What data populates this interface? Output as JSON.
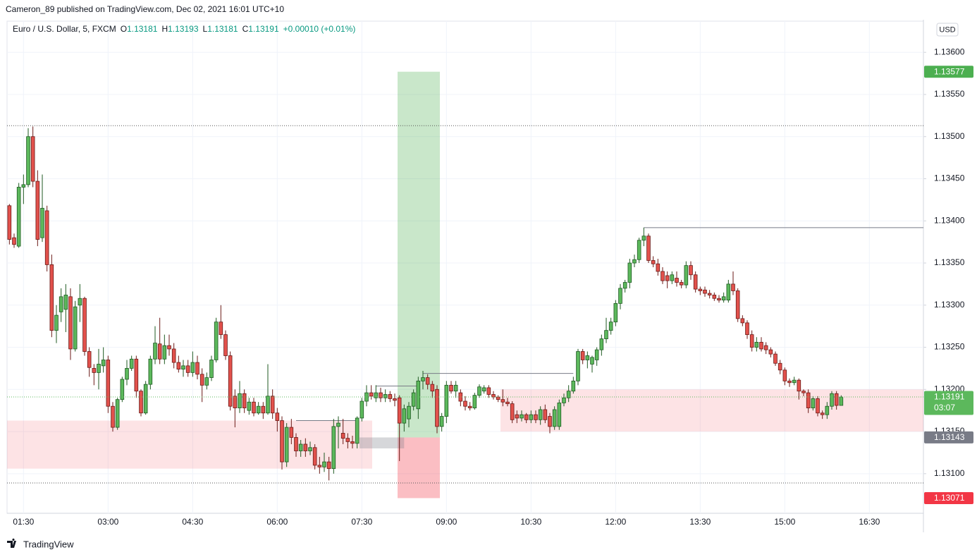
{
  "attribution": "Cameron_89 published on TradingView.com, Dec 02, 2021 16:01 UTC+10",
  "brand": "TradingView",
  "chart_data": {
    "type": "candlestick",
    "title": "Euro / U.S. Dollar, 5, FXCM",
    "legend_keys": [
      "O",
      "H",
      "L",
      "C"
    ],
    "change": "+0.00010 (+0.01%)",
    "countdown": "03:07",
    "currency": "USD",
    "up_color": "#5cb85c",
    "down_color": "#e2514c",
    "grid": true,
    "ylim": [
      1.13053,
      1.13637
    ],
    "yticks": [
      {
        "value": 1.131,
        "label": "1.13100"
      },
      {
        "value": 1.1315,
        "label": "1.13150"
      },
      {
        "value": 1.132,
        "label": "1.13200"
      },
      {
        "value": 1.1325,
        "label": "1.13250"
      },
      {
        "value": 1.133,
        "label": "1.13300"
      },
      {
        "value": 1.1335,
        "label": "1.13350"
      },
      {
        "value": 1.134,
        "label": "1.13400"
      },
      {
        "value": 1.1345,
        "label": "1.13450"
      },
      {
        "value": 1.135,
        "label": "1.13500"
      },
      {
        "value": 1.1355,
        "label": "1.13550"
      },
      {
        "value": 1.136,
        "label": "1.13600"
      }
    ],
    "categories": [
      null,
      null,
      null,
      "01:30",
      null,
      null,
      null,
      null,
      null,
      null,
      null,
      null,
      null,
      null,
      null,
      null,
      null,
      null,
      null,
      null,
      null,
      "03:00",
      null,
      null,
      null,
      null,
      null,
      null,
      null,
      null,
      null,
      null,
      null,
      null,
      null,
      null,
      null,
      null,
      null,
      "04:30",
      null,
      null,
      null,
      null,
      null,
      null,
      null,
      null,
      null,
      null,
      null,
      null,
      null,
      null,
      null,
      null,
      null,
      "06:00",
      null,
      null,
      null,
      null,
      null,
      null,
      null,
      null,
      null,
      null,
      null,
      null,
      null,
      null,
      null,
      null,
      null,
      "07:30",
      null,
      null,
      null,
      null,
      null,
      null,
      null,
      null,
      null,
      null,
      null,
      null,
      null,
      null,
      null,
      null,
      null,
      "09:00",
      null,
      null,
      null,
      null,
      null,
      null,
      null,
      null,
      null,
      null,
      null,
      null,
      null,
      null,
      null,
      null,
      null,
      "10:30",
      null,
      null,
      null,
      null,
      null,
      null,
      null,
      null,
      null,
      null,
      null,
      null,
      null,
      null,
      null,
      null,
      null,
      "12:00",
      null,
      null,
      null,
      null,
      null,
      null,
      null,
      null,
      null,
      null,
      null,
      null,
      null,
      null,
      null,
      null,
      null,
      "13:30",
      null,
      null,
      null,
      null,
      null,
      null,
      null,
      null,
      null,
      null,
      null,
      null,
      null,
      null,
      null,
      null,
      null,
      "15:00",
      null,
      null,
      null,
      null,
      null,
      null,
      null,
      null,
      null,
      null,
      null,
      null,
      null,
      null,
      null,
      null,
      null,
      "16:30",
      null,
      null,
      null,
      null,
      null,
      null,
      null,
      null,
      null,
      null,
      null
    ],
    "ohlc": [
      [
        1.13418,
        1.1342,
        1.13372,
        1.13378
      ],
      [
        1.1338,
        1.13385,
        1.13368,
        1.13372
      ],
      [
        1.1337,
        1.13445,
        1.13368,
        1.1344
      ],
      [
        1.1344,
        1.13455,
        1.1342,
        1.13443
      ],
      [
        1.13443,
        1.1351,
        1.1344,
        1.135
      ],
      [
        1.135,
        1.13512,
        1.1344,
        1.13447
      ],
      [
        1.13447,
        1.1346,
        1.1337,
        1.13378
      ],
      [
        1.1338,
        1.13455,
        1.13375,
        1.13415
      ],
      [
        1.13412,
        1.13418,
        1.1334,
        1.13348
      ],
      [
        1.13348,
        1.1336,
        1.13262,
        1.1327
      ],
      [
        1.1327,
        1.133,
        1.13255,
        1.13288
      ],
      [
        1.13292,
        1.1332,
        1.1328,
        1.1331
      ],
      [
        1.13295,
        1.13325,
        1.13268,
        1.13312
      ],
      [
        1.1331,
        1.1332,
        1.13235,
        1.13248
      ],
      [
        1.13248,
        1.13305,
        1.13245,
        1.13298
      ],
      [
        1.133,
        1.13325,
        1.1328,
        1.13308
      ],
      [
        1.13308,
        1.1331,
        1.1324,
        1.13245
      ],
      [
        1.13245,
        1.1325,
        1.13215,
        1.13226
      ],
      [
        1.13225,
        1.1323,
        1.13205,
        1.1322
      ],
      [
        1.1322,
        1.13248,
        1.132,
        1.1323
      ],
      [
        1.13228,
        1.1325,
        1.1322,
        1.13235
      ],
      [
        1.13235,
        1.1324,
        1.13172,
        1.1318
      ],
      [
        1.1318,
        1.13185,
        1.1315,
        1.13155
      ],
      [
        1.13155,
        1.1319,
        1.13152,
        1.13188
      ],
      [
        1.13188,
        1.13215,
        1.13185,
        1.13212
      ],
      [
        1.13212,
        1.13235,
        1.13205,
        1.13225
      ],
      [
        1.13225,
        1.1324,
        1.13222,
        1.13236
      ],
      [
        1.13236,
        1.1324,
        1.1319,
        1.13198
      ],
      [
        1.13198,
        1.132,
        1.13168,
        1.13172
      ],
      [
        1.13172,
        1.1321,
        1.1317,
        1.13206
      ],
      [
        1.13206,
        1.1324,
        1.132,
        1.13236
      ],
      [
        1.13236,
        1.13275,
        1.1323,
        1.13255
      ],
      [
        1.13254,
        1.13285,
        1.1323,
        1.13236
      ],
      [
        1.13236,
        1.13265,
        1.1323,
        1.13252
      ],
      [
        1.13252,
        1.13265,
        1.1324,
        1.13248
      ],
      [
        1.13248,
        1.13255,
        1.13225,
        1.13232
      ],
      [
        1.13232,
        1.1324,
        1.1322,
        1.13224
      ],
      [
        1.13224,
        1.13235,
        1.13215,
        1.13228
      ],
      [
        1.13228,
        1.13235,
        1.13215,
        1.1322
      ],
      [
        1.1322,
        1.13245,
        1.13215,
        1.13232
      ],
      [
        1.13232,
        1.1324,
        1.13212,
        1.13218
      ],
      [
        1.13218,
        1.13225,
        1.13185,
        1.13205
      ],
      [
        1.13205,
        1.1322,
        1.132,
        1.13214
      ],
      [
        1.13214,
        1.1324,
        1.1321,
        1.13235
      ],
      [
        1.13235,
        1.13285,
        1.13232,
        1.1328
      ],
      [
        1.1328,
        1.133,
        1.1326,
        1.13265
      ],
      [
        1.13265,
        1.1327,
        1.13235,
        1.1324
      ],
      [
        1.1324,
        1.13245,
        1.13175,
        1.1318
      ],
      [
        1.13192,
        1.132,
        1.13155,
        1.13178
      ],
      [
        1.13178,
        1.1321,
        1.13172,
        1.13195
      ],
      [
        1.13195,
        1.132,
        1.13172,
        1.13178
      ],
      [
        1.13175,
        1.1319,
        1.1317,
        1.13185
      ],
      [
        1.13185,
        1.1319,
        1.13168,
        1.13172
      ],
      [
        1.13172,
        1.13185,
        1.1317,
        1.1318
      ],
      [
        1.1318,
        1.13185,
        1.13165,
        1.13172
      ],
      [
        1.13172,
        1.1323,
        1.1317,
        1.13192
      ],
      [
        1.13192,
        1.132,
        1.13165,
        1.13172
      ],
      [
        1.13172,
        1.13178,
        1.1315,
        1.13163
      ],
      [
        1.13163,
        1.13168,
        1.13105,
        1.13114
      ],
      [
        1.13114,
        1.1316,
        1.13108,
        1.13155
      ],
      [
        1.13155,
        1.13165,
        1.13135,
        1.13143
      ],
      [
        1.13143,
        1.13148,
        1.1312,
        1.13127
      ],
      [
        1.13127,
        1.1314,
        1.1312,
        1.13135
      ],
      [
        1.13135,
        1.13142,
        1.1312,
        1.13127
      ],
      [
        1.13127,
        1.13138,
        1.13122,
        1.13131
      ],
      [
        1.13131,
        1.13135,
        1.13105,
        1.1311
      ],
      [
        1.1311,
        1.1312,
        1.131,
        1.13108
      ],
      [
        1.13108,
        1.13125,
        1.13102,
        1.13114
      ],
      [
        1.13114,
        1.1312,
        1.13092,
        1.13106
      ],
      [
        1.13106,
        1.13165,
        1.131,
        1.13156
      ],
      [
        1.13156,
        1.13168,
        1.1313,
        1.1316
      ],
      [
        1.13148,
        1.13165,
        1.13135,
        1.13142
      ],
      [
        1.13142,
        1.13148,
        1.1313,
        1.13138
      ],
      [
        1.13138,
        1.13145,
        1.1313,
        1.13136
      ],
      [
        1.13136,
        1.13168,
        1.1313,
        1.13166
      ],
      [
        1.13166,
        1.1319,
        1.13162,
        1.13186
      ],
      [
        1.13186,
        1.13205,
        1.1318,
        1.13196
      ],
      [
        1.13196,
        1.13205,
        1.13188,
        1.13192
      ],
      [
        1.1319,
        1.13205,
        1.13185,
        1.13196
      ],
      [
        1.13196,
        1.13202,
        1.13185,
        1.1319
      ],
      [
        1.1319,
        1.132,
        1.13185,
        1.13194
      ],
      [
        1.13194,
        1.13198,
        1.13185,
        1.13189
      ],
      [
        1.13189,
        1.13195,
        1.1318,
        1.13187
      ],
      [
        1.1319,
        1.13193,
        1.13115,
        1.1316
      ],
      [
        1.1316,
        1.13182,
        1.1315,
        1.13177
      ],
      [
        1.13165,
        1.13185,
        1.13155,
        1.1318
      ],
      [
        1.1318,
        1.132,
        1.13175,
        1.13196
      ],
      [
        1.13177,
        1.13215,
        1.13165,
        1.1321
      ],
      [
        1.1321,
        1.13222,
        1.132,
        1.13214
      ],
      [
        1.13214,
        1.13218,
        1.132,
        1.13206
      ],
      [
        1.13206,
        1.1321,
        1.1319,
        1.13198
      ],
      [
        1.132,
        1.13205,
        1.13148,
        1.13156
      ],
      [
        1.13156,
        1.13172,
        1.1315,
        1.13168
      ],
      [
        1.13168,
        1.1321,
        1.1316,
        1.13205
      ],
      [
        1.13205,
        1.1321,
        1.13195,
        1.13198
      ],
      [
        1.13198,
        1.1321,
        1.1319,
        1.13205
      ],
      [
        1.13196,
        1.132,
        1.1318,
        1.13186
      ],
      [
        1.13186,
        1.13192,
        1.13175,
        1.1318
      ],
      [
        1.1318,
        1.13185,
        1.13175,
        1.13178
      ],
      [
        1.13178,
        1.13196,
        1.13176,
        1.13193
      ],
      [
        1.13193,
        1.13206,
        1.1319,
        1.13203
      ],
      [
        1.13198,
        1.13205,
        1.13195,
        1.13202
      ],
      [
        1.13202,
        1.13205,
        1.1319,
        1.13194
      ],
      [
        1.13194,
        1.13198,
        1.13188,
        1.13191
      ],
      [
        1.13191,
        1.13193,
        1.13185,
        1.13188
      ],
      [
        1.13188,
        1.132,
        1.1318,
        1.13185
      ],
      [
        1.13185,
        1.1319,
        1.1318,
        1.13183
      ],
      [
        1.13183,
        1.13186,
        1.1316,
        1.13164
      ],
      [
        1.1317,
        1.13175,
        1.1316,
        1.13166
      ],
      [
        1.13166,
        1.13175,
        1.13162,
        1.1317
      ],
      [
        1.1317,
        1.13172,
        1.1316,
        1.13164
      ],
      [
        1.13164,
        1.13175,
        1.1316,
        1.1317
      ],
      [
        1.1317,
        1.13175,
        1.1316,
        1.13164
      ],
      [
        1.13164,
        1.1318,
        1.13158,
        1.13176
      ],
      [
        1.13176,
        1.13182,
        1.1316,
        1.13164
      ],
      [
        1.13168,
        1.13172,
        1.13148,
        1.13156
      ],
      [
        1.13156,
        1.1318,
        1.13152,
        1.13176
      ],
      [
        1.13156,
        1.13188,
        1.13152,
        1.13184
      ],
      [
        1.13184,
        1.13195,
        1.1318,
        1.1319
      ],
      [
        1.1319,
        1.13205,
        1.13185,
        1.13198
      ],
      [
        1.13198,
        1.13215,
        1.13195,
        1.1321
      ],
      [
        1.1321,
        1.13248,
        1.13205,
        1.13245
      ],
      [
        1.13245,
        1.13248,
        1.1323,
        1.13235
      ],
      [
        1.13235,
        1.13245,
        1.13225,
        1.1324
      ],
      [
        1.1323,
        1.1324,
        1.1322,
        1.13238
      ],
      [
        1.13235,
        1.1325,
        1.13228,
        1.13247
      ],
      [
        1.13247,
        1.13265,
        1.1324,
        1.1326
      ],
      [
        1.1326,
        1.13285,
        1.13255,
        1.1327
      ],
      [
        1.1327,
        1.13285,
        1.13265,
        1.1328
      ],
      [
        1.1328,
        1.13306,
        1.13275,
        1.13302
      ],
      [
        1.13302,
        1.13325,
        1.13295,
        1.1332
      ],
      [
        1.1332,
        1.1333,
        1.13315,
        1.13327
      ],
      [
        1.13327,
        1.13355,
        1.1332,
        1.1335
      ],
      [
        1.1335,
        1.1336,
        1.13345,
        1.13354
      ],
      [
        1.13354,
        1.1338,
        1.1335,
        1.13377
      ],
      [
        1.13377,
        1.13392,
        1.1337,
        1.13382
      ],
      [
        1.13382,
        1.13385,
        1.1335,
        1.13353
      ],
      [
        1.13353,
        1.13358,
        1.13345,
        1.13349
      ],
      [
        1.13349,
        1.13355,
        1.13335,
        1.1334
      ],
      [
        1.1334,
        1.13345,
        1.13325,
        1.13329
      ],
      [
        1.13335,
        1.1334,
        1.1332,
        1.13329
      ],
      [
        1.13329,
        1.1334,
        1.13325,
        1.13336
      ],
      [
        1.13332,
        1.1334,
        1.13322,
        1.13327
      ],
      [
        1.13327,
        1.1333,
        1.1332,
        1.13324
      ],
      [
        1.13324,
        1.13352,
        1.1332,
        1.13347
      ],
      [
        1.13347,
        1.13352,
        1.1333,
        1.13336
      ],
      [
        1.13336,
        1.1334,
        1.13315,
        1.13319
      ],
      [
        1.13319,
        1.13322,
        1.13312,
        1.13317
      ],
      [
        1.13318,
        1.13322,
        1.1331,
        1.13314
      ],
      [
        1.13314,
        1.13318,
        1.13308,
        1.13312
      ],
      [
        1.13312,
        1.13315,
        1.13305,
        1.13308
      ],
      [
        1.13308,
        1.13312,
        1.13303,
        1.13306
      ],
      [
        1.13306,
        1.13315,
        1.13303,
        1.1331
      ],
      [
        1.13306,
        1.1333,
        1.13303,
        1.13325
      ],
      [
        1.13325,
        1.1334,
        1.13312,
        1.13317
      ],
      [
        1.13317,
        1.1332,
        1.1328,
        1.13284
      ],
      [
        1.13284,
        1.13288,
        1.13275,
        1.13279
      ],
      [
        1.13279,
        1.13282,
        1.1326,
        1.13265
      ],
      [
        1.13265,
        1.1327,
        1.13245,
        1.1325
      ],
      [
        1.1325,
        1.13262,
        1.13245,
        1.13256
      ],
      [
        1.13256,
        1.13262,
        1.13245,
        1.13248
      ],
      [
        1.13252,
        1.13256,
        1.13242,
        1.13247
      ],
      [
        1.13247,
        1.1325,
        1.13238,
        1.13242
      ],
      [
        1.13242,
        1.13245,
        1.13228,
        1.13231
      ],
      [
        1.13231,
        1.13235,
        1.13218,
        1.13223
      ],
      [
        1.13223,
        1.13226,
        1.13205,
        1.1321
      ],
      [
        1.1321,
        1.13213,
        1.13203,
        1.13208
      ],
      [
        1.13208,
        1.13215,
        1.13205,
        1.13211
      ],
      [
        1.13211,
        1.13213,
        1.13188,
        1.13198
      ],
      [
        1.13198,
        1.132,
        1.13192,
        1.13196
      ],
      [
        1.13196,
        1.132,
        1.13172,
        1.13178
      ],
      [
        1.13178,
        1.13192,
        1.13175,
        1.13189
      ],
      [
        1.13189,
        1.13192,
        1.13168,
        1.13172
      ],
      [
        1.13172,
        1.13175,
        1.13165,
        1.1317
      ],
      [
        1.1317,
        1.13185,
        1.13165,
        1.1318
      ],
      [
        1.1318,
        1.13198,
        1.13176,
        1.13195
      ],
      [
        1.13195,
        1.13198,
        1.13176,
        1.13181
      ],
      [
        1.13181,
        1.13193,
        1.13181,
        1.13191
      ],
      null,
      null,
      null,
      null,
      null,
      null,
      null,
      null,
      null,
      null,
      null,
      null,
      null,
      null,
      null,
      null,
      null
    ],
    "zones": [
      [
        1.13163,
        1.13106
      ],
      [
        1.132,
        1.1315
      ]
    ],
    "highlight": [
      1.13143,
      1.1313
    ],
    "trend_lines": [
      1.13392,
      1.13219,
      1.13204,
      1.13163
    ],
    "dotted_levels": [
      1.13513,
      1.13089
    ],
    "position": {
      "target": 1.13577,
      "entry": 1.13143,
      "stop": 1.13071
    }
  }
}
